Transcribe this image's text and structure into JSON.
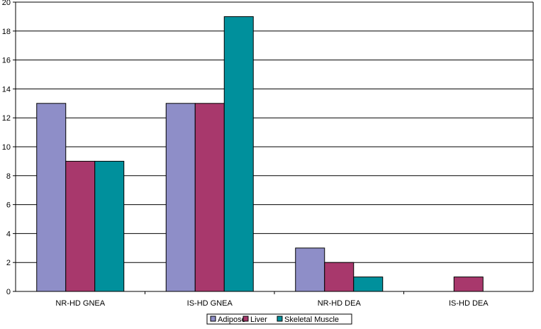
{
  "chart_data": {
    "type": "bar",
    "categories": [
      "NR-HD GNEA",
      "IS-HD GNEA",
      "NR-HD DEA",
      "IS-HD DEA"
    ],
    "series": [
      {
        "name": "Adipose",
        "values": [
          13,
          13,
          3,
          0
        ],
        "color": "#8e8ec8"
      },
      {
        "name": "Liver",
        "values": [
          9,
          13,
          2,
          1
        ],
        "color": "#a8386c"
      },
      {
        "name": "Skeletal Muscle",
        "values": [
          9,
          19,
          1,
          0
        ],
        "color": "#00909c"
      }
    ],
    "yticks": [
      0,
      2,
      4,
      6,
      8,
      10,
      12,
      14,
      16,
      18,
      20
    ],
    "ylim": [
      0,
      20
    ],
    "grid": true,
    "legend_position": "bottom-center",
    "title": "",
    "xlabel": "",
    "ylabel": ""
  }
}
